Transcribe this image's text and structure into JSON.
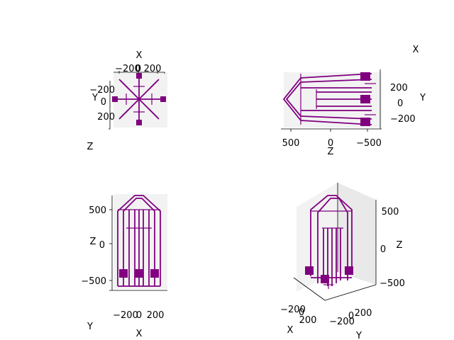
{
  "figure": {
    "series_color": "#800080"
  },
  "chart_data": [
    {
      "type": "line3d",
      "view": "top (looking down Z)",
      "axis_labels": {
        "x": "X",
        "y": "Y",
        "z": "Z"
      },
      "x_ticks": [
        "−200",
        "0",
        "200"
      ],
      "y_ticks": [
        "−200",
        "0",
        "200"
      ],
      "xlim": [
        -250,
        250
      ],
      "ylim": [
        -250,
        250
      ],
      "description_values": {
        "arms": 8
      }
    },
    {
      "type": "line3d",
      "view": "side (X axis into screen)",
      "axis_labels": {
        "x": "X",
        "y": "Y",
        "z": "Z"
      },
      "z_ticks": [
        "500",
        "0",
        "−500"
      ],
      "y_ticks": [
        "200",
        "0",
        "−200"
      ],
      "zlim": [
        -600,
        700
      ],
      "ylim": [
        -300,
        300
      ]
    },
    {
      "type": "line3d",
      "view": "front (Y axis into screen)",
      "axis_labels": {
        "x": "X",
        "y": "Y",
        "z": "Z"
      },
      "x_ticks": [
        "−200",
        "0",
        "200"
      ],
      "z_ticks": [
        "500",
        "0",
        "−500"
      ],
      "xlim": [
        -250,
        250
      ],
      "zlim": [
        -600,
        700
      ]
    },
    {
      "type": "line3d",
      "view": "isometric",
      "axis_labels": {
        "x": "X",
        "y": "Y",
        "z": "Z"
      },
      "x_ticks": [
        "−200",
        "0",
        "200"
      ],
      "y_ticks": [
        "−200",
        "0",
        "200"
      ],
      "z_ticks": [
        "500",
        "0",
        "−500"
      ]
    }
  ]
}
